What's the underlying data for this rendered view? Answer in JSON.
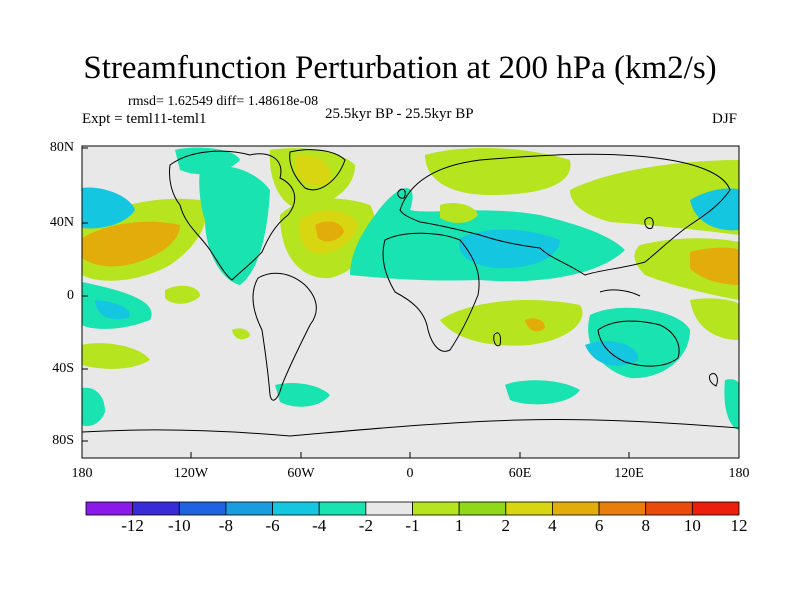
{
  "title": "Streamfunction Perturbation at 200 hPa (km2/s)",
  "stats": "rmsd= 1.62549  diff= 1.48618e-08",
  "experiment": "Expt = teml11-teml1",
  "period": "25.5kyr BP - 25.5kyr BP",
  "season": "DJF",
  "lat_labels": [
    "80N",
    "40N",
    "0",
    "40S",
    "80S"
  ],
  "lon_labels": [
    "180",
    "120W",
    "60W",
    "0",
    "60E",
    "120E",
    "180"
  ],
  "colorbar": {
    "labels": [
      "-12",
      "-10",
      "-8",
      "-6",
      "-4",
      "-2",
      "-1",
      "1",
      "2",
      "4",
      "6",
      "8",
      "10",
      "12"
    ],
    "colors": [
      "#8a1aea",
      "#3a2bd8",
      "#1f63e0",
      "#1a9ce0",
      "#14c6e0",
      "#19e3b0",
      "#e8e8e8",
      "#b6e41f",
      "#8fd91a",
      "#d7d610",
      "#e2ac0a",
      "#ea7e0c",
      "#ea4a0c",
      "#ec1e0c"
    ]
  },
  "colors": {
    "neutral": "#e8e8e8",
    "pos1": "#b6e41f",
    "pos2": "#8fd91a",
    "pos4": "#d7d610",
    "pos6": "#e2ac0a",
    "neg1": "#19e3b0",
    "neg2": "#14c6e0",
    "neg4": "#1a9ce0"
  }
}
